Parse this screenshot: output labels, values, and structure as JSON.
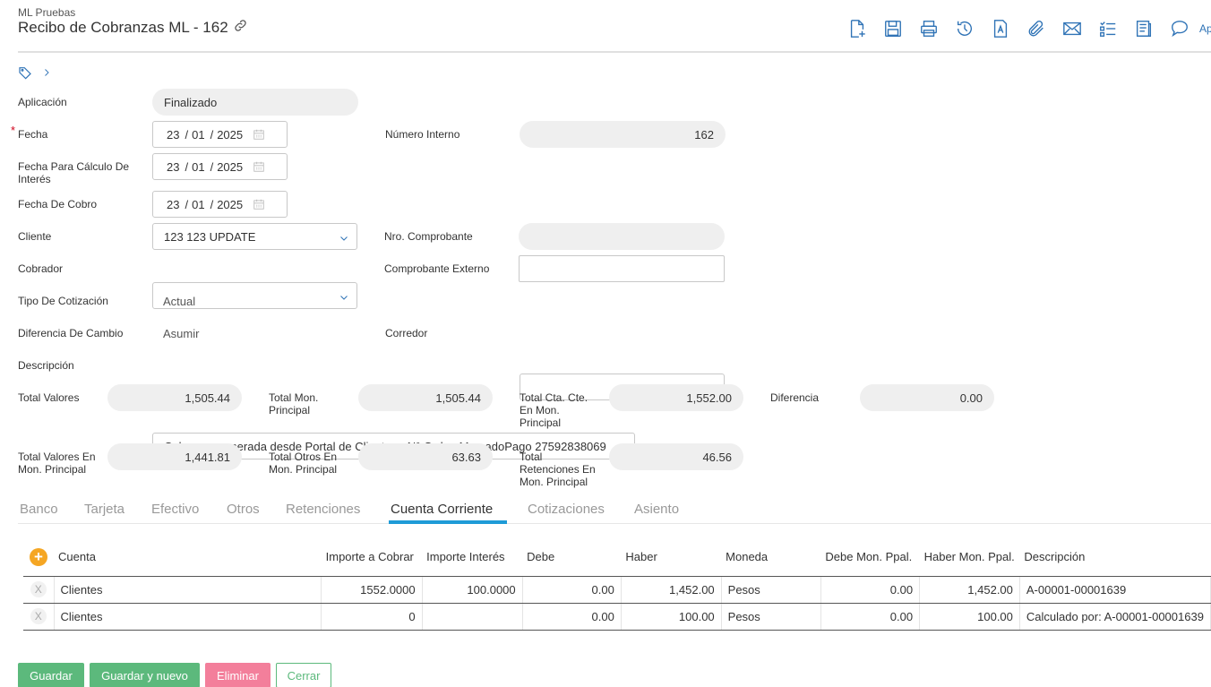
{
  "header": {
    "company": "ML Pruebas",
    "title": "Recibo de Cobranzas ML - 162",
    "more_label": "Ap"
  },
  "fields": {
    "aplicacion_label": "Aplicación",
    "aplicacion_value": "Finalizado",
    "fecha_label": "Fecha",
    "fecha_required": "*",
    "fecha": {
      "d": "23",
      "m": "01",
      "y": "2025"
    },
    "numero_interno_label": "Número Interno",
    "numero_interno_value": "162",
    "fecha_interes_label": "Fecha Para Cálculo De Interés",
    "fecha_interes": {
      "d": "23",
      "m": "01",
      "y": "2025"
    },
    "fecha_cobro_label": "Fecha De Cobro",
    "fecha_cobro": {
      "d": "23",
      "m": "01",
      "y": "2025"
    },
    "cliente_label": "Cliente",
    "cliente_value": "123 123 UPDATE",
    "nro_comprobante_label": "Nro. Comprobante",
    "nro_comprobante_value": "",
    "cobrador_label": "Cobrador",
    "cobrador_value": "",
    "comprobante_externo_label": "Comprobante Externo",
    "comprobante_externo_value": "",
    "tipo_cotizacion_label": "Tipo De Cotización",
    "tipo_cotizacion_value": "Actual",
    "diferencia_cambio_label": "Diferencia De Cambio",
    "diferencia_cambio_value": "Asumir",
    "corredor_label": "Corredor",
    "corredor_value": "",
    "descripcion_label": "Descripción",
    "descripcion_value": "Cobranza generada desde Portal de Clientes - N° Orden MercadoPago 27592838069"
  },
  "totals": {
    "total_valores_label": "Total Valores",
    "total_valores": "1,505.44",
    "total_mon_principal_label": "Total Mon. Principal",
    "total_mon_principal": "1,505.44",
    "total_cta_cte_label": "Total Cta. Cte. En Mon. Principal",
    "total_cta_cte": "1,552.00",
    "diferencia_label": "Diferencia",
    "diferencia": "0.00",
    "total_valores_mon_label": "Total Valores En Mon. Principal",
    "total_valores_mon": "1,441.81",
    "total_otros_label": "Total Otros En Mon. Principal",
    "total_otros": "63.63",
    "total_retenciones_label": "Total Retenciones En Mon. Principal",
    "total_retenciones": "46.56"
  },
  "tabs": [
    "Banco",
    "Tarjeta",
    "Efectivo",
    "Otros",
    "Retenciones",
    "Cuenta Corriente",
    "Cotizaciones",
    "Asiento"
  ],
  "active_tab": "Cuenta Corriente",
  "grid": {
    "add_symbol": "+",
    "remove_symbol": "X",
    "columns": [
      "Cuenta",
      "Importe a Cobrar",
      "Importe Interés",
      "Debe",
      "Haber",
      "Moneda",
      "Debe Mon. Ppal.",
      "Haber Mon. Ppal.",
      "Descripción"
    ],
    "rows": [
      [
        "Clientes",
        "1552.0000",
        "100.0000",
        "0.00",
        "1,452.00",
        "Pesos",
        "0.00",
        "1,452.00",
        "A-00001-00001639"
      ],
      [
        "Clientes",
        "0",
        "",
        "0.00",
        "100.00",
        "Pesos",
        "0.00",
        "100.00",
        "Calculado por: A-00001-00001639"
      ]
    ]
  },
  "buttons": {
    "guardar": "Guardar",
    "guardar_nuevo": "Guardar y nuevo",
    "eliminar": "Eliminar",
    "cerrar": "Cerrar"
  },
  "colors": {
    "accent": "#1e9bd7",
    "icon": "#2f73b6",
    "save": "#5cb97c",
    "delete": "#f37f9b",
    "add": "#f5a623"
  },
  "icons": [
    "new-document-icon",
    "save-icon",
    "print-icon",
    "history-icon",
    "text-document-icon",
    "attachment-icon",
    "mail-icon",
    "checklist-icon",
    "report-icon",
    "comment-icon",
    "link-icon",
    "tag-icon",
    "chevron-right-icon",
    "calendar-icon",
    "chevron-down-icon"
  ]
}
